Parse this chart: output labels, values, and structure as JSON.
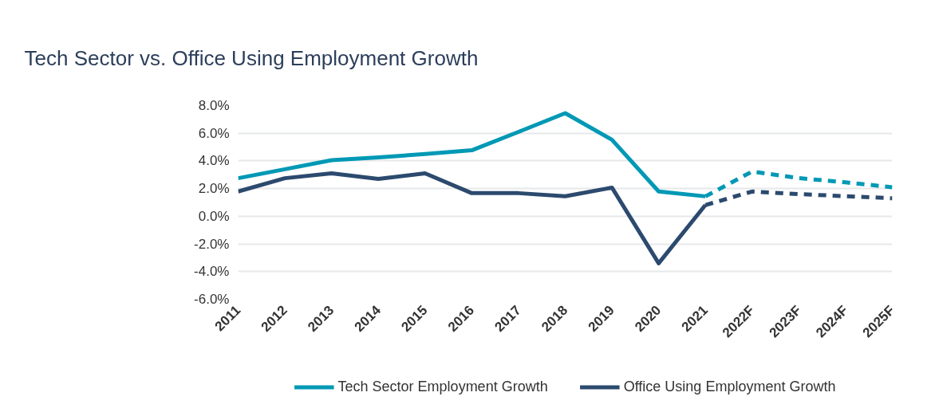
{
  "chart_data": {
    "type": "line",
    "title": "Tech Sector vs. Office Using Employment Growth",
    "categories": [
      "2011",
      "2012",
      "2013",
      "2014",
      "2015",
      "2016",
      "2017",
      "2018",
      "2019",
      "2020",
      "2021",
      "2022F",
      "2023F",
      "2024F",
      "2025F"
    ],
    "series": [
      {
        "name": "Tech Sector Employment Growth",
        "color": "#0099b5",
        "line_style": "solid",
        "values": [
          2.75,
          3.4,
          4.05,
          4.25,
          4.5,
          4.77,
          6.1,
          7.45,
          5.53,
          1.79,
          1.44,
          null,
          null,
          null,
          null
        ]
      },
      {
        "name": "Office Using Employment Growth",
        "color": "#2c4a6e",
        "line_style": "solid",
        "values": [
          1.79,
          2.75,
          3.1,
          2.7,
          3.1,
          1.67,
          1.67,
          1.45,
          2.07,
          -3.4,
          0.81,
          null,
          null,
          null,
          null
        ]
      },
      {
        "color": "#0099b5",
        "line_style": "dashed",
        "values": [
          null,
          null,
          null,
          null,
          null,
          null,
          null,
          null,
          null,
          null,
          1.44,
          3.23,
          2.76,
          2.45,
          2.1
        ]
      },
      {
        "color": "#2c4a6e",
        "line_style": "dashed",
        "values": [
          null,
          null,
          null,
          null,
          null,
          null,
          null,
          null,
          null,
          null,
          0.81,
          1.79,
          1.6,
          1.45,
          1.3
        ]
      }
    ],
    "ylim": [
      -6,
      8
    ],
    "yticks": [
      {
        "value": -6,
        "label": "-6.0%"
      },
      {
        "value": -4,
        "label": "-4.0%"
      },
      {
        "value": -2,
        "label": "-2.0%"
      },
      {
        "value": 0,
        "label": "0.0%"
      },
      {
        "value": 2,
        "label": "2.0%"
      },
      {
        "value": 4,
        "label": "4.0%"
      },
      {
        "value": 6,
        "label": "6.0%"
      },
      {
        "value": 8,
        "label": "8.0%"
      }
    ],
    "grid": "y",
    "legend": "bottom",
    "marker": "none"
  }
}
